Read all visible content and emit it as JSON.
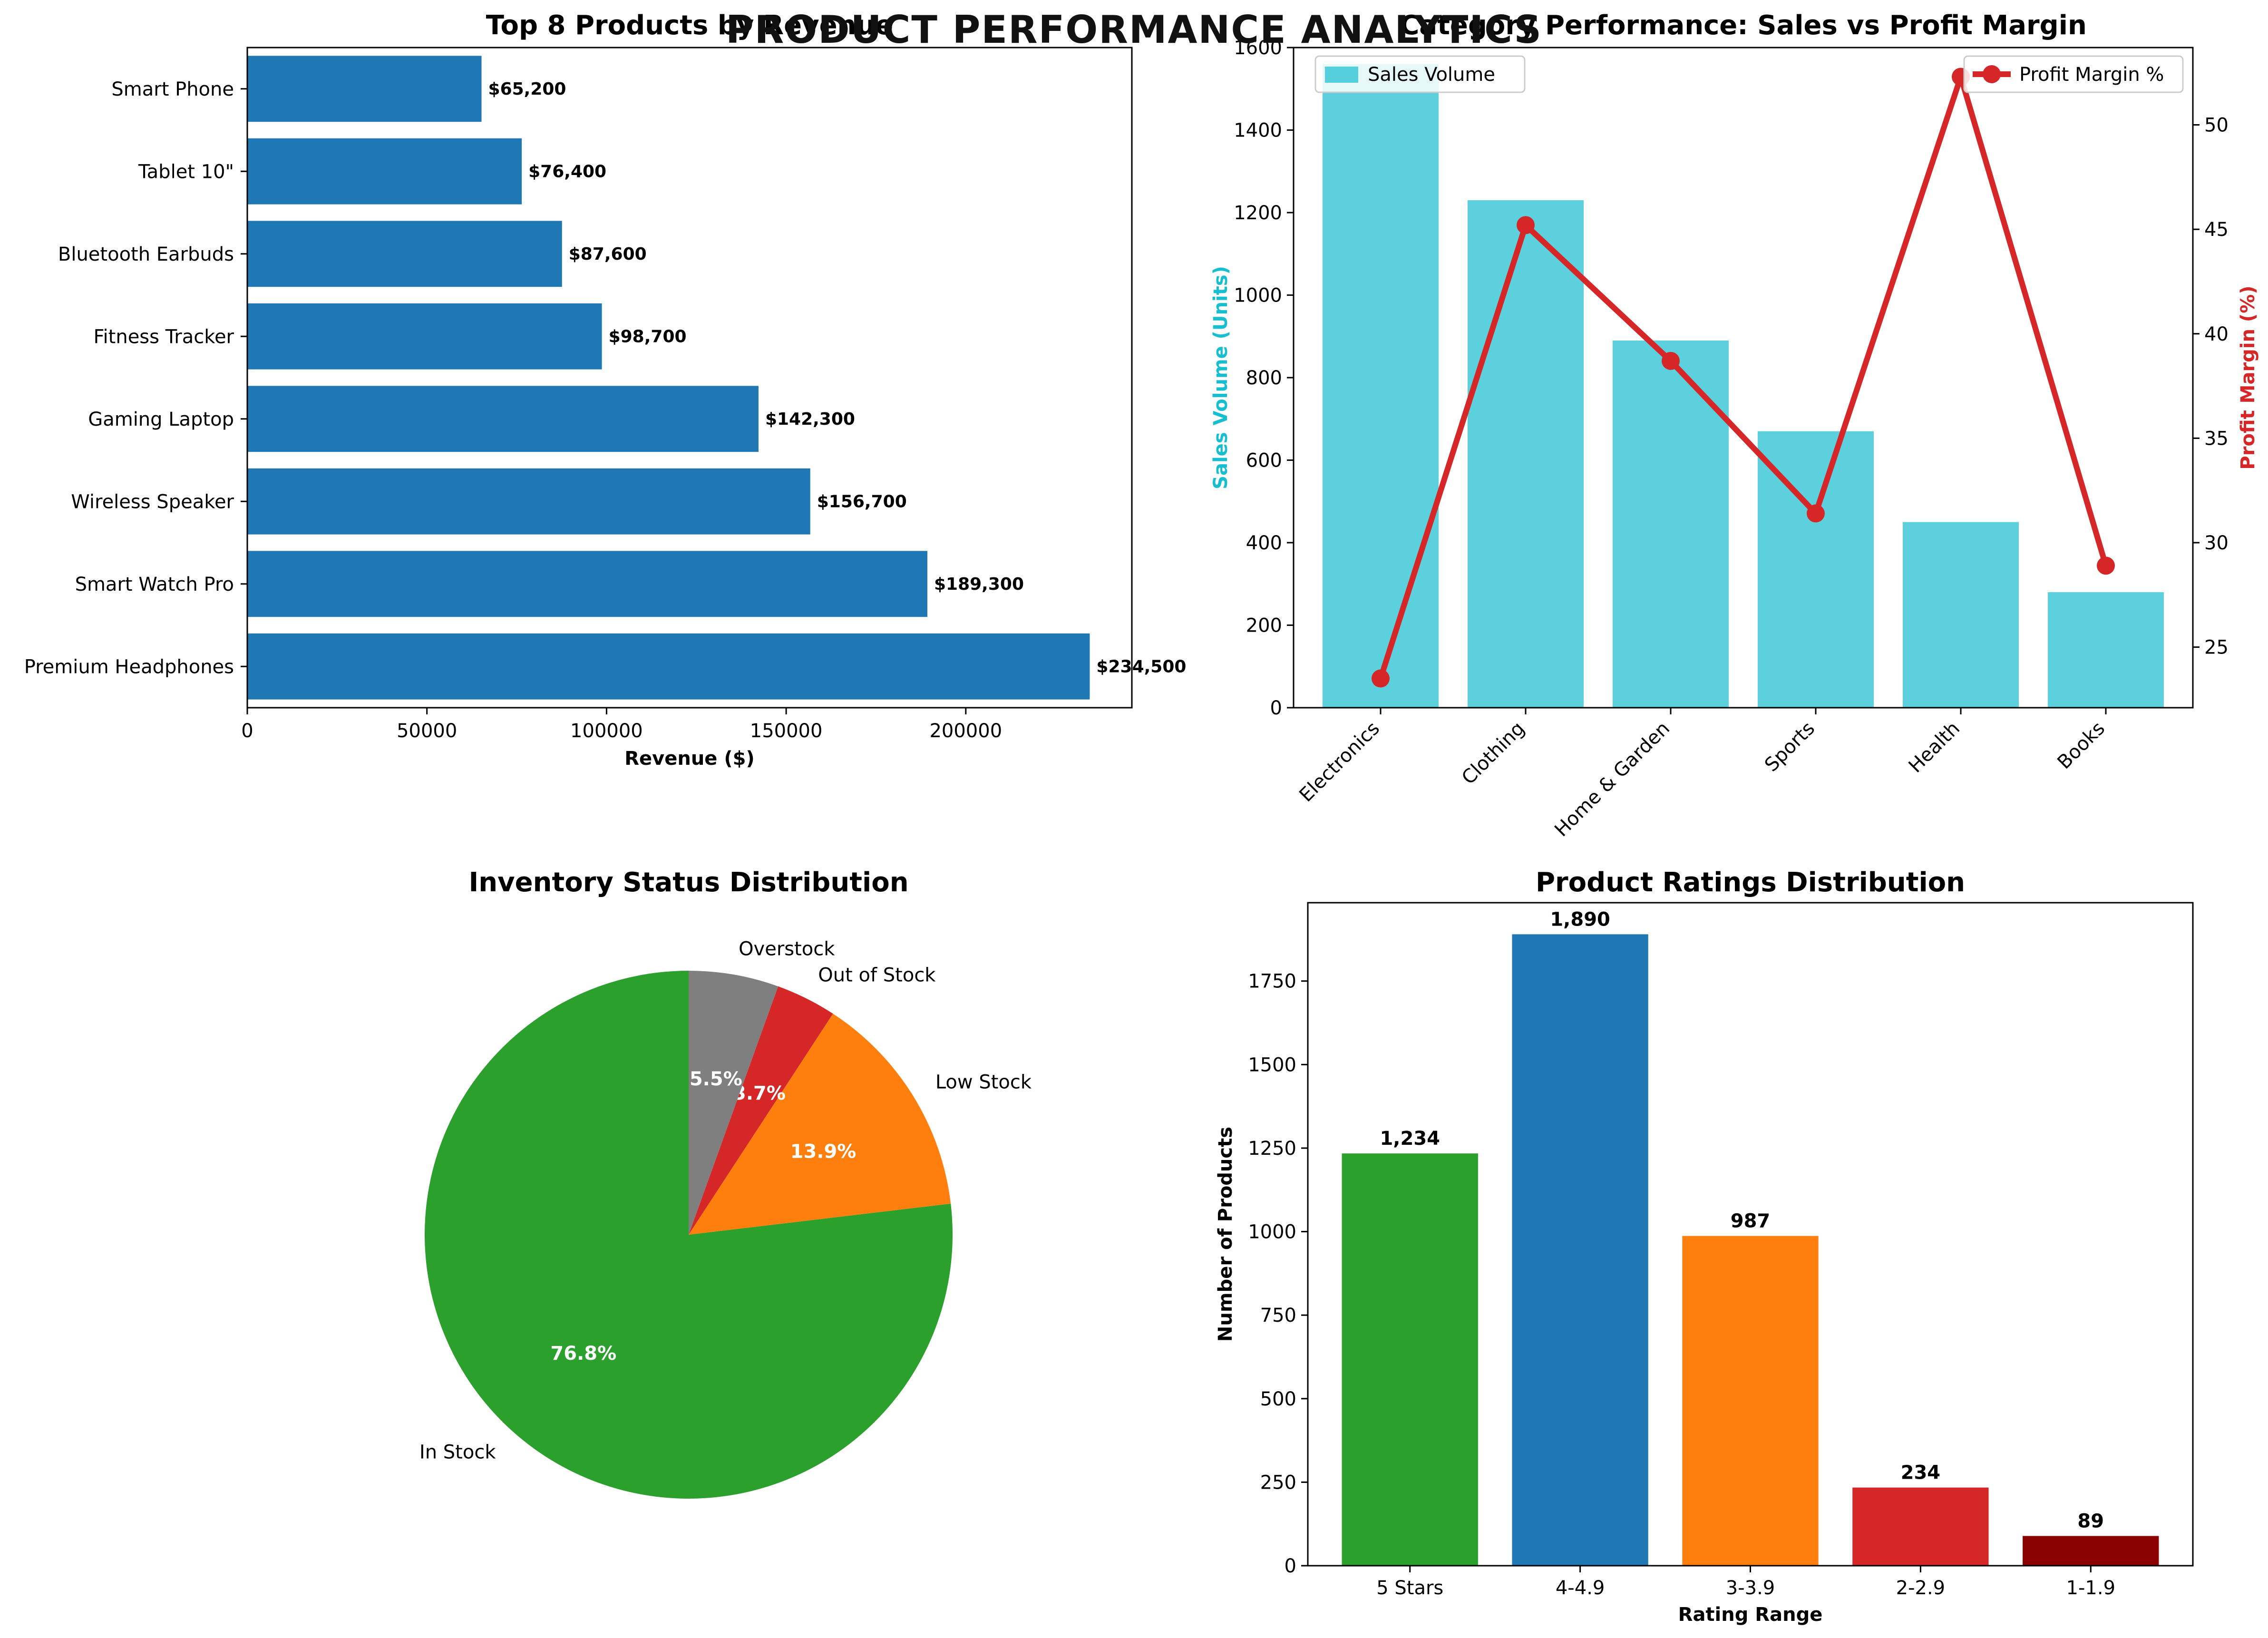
{
  "page_title": "PRODUCT PERFORMANCE ANALYTICS",
  "chart_data": [
    {
      "type": "bar",
      "orientation": "horizontal",
      "title": "Top 8 Products by Revenue",
      "xlabel": "Revenue ($)",
      "ylabel": "",
      "categories": [
        "Premium Headphones",
        "Smart Watch Pro",
        "Wireless Speaker",
        "Gaming Laptop",
        "Fitness Tracker",
        "Bluetooth Earbuds",
        "Tablet 10\"",
        "Smart Phone"
      ],
      "values": [
        234500,
        189300,
        156700,
        142300,
        98700,
        87600,
        76400,
        65200
      ],
      "value_labels": [
        "$234,500",
        "$189,300",
        "$156,700",
        "$142,300",
        "$98,700",
        "$87,600",
        "$76,400",
        "$65,200"
      ],
      "xticks": [
        0,
        50000,
        100000,
        150000,
        200000
      ],
      "xtick_labels": [
        "0",
        "50000",
        "100000",
        "150000",
        "200000"
      ],
      "xlim": [
        0,
        246225
      ],
      "color": "#1f77b4",
      "grid": false
    },
    {
      "type": "bar+line",
      "title": "Category Performance: Sales vs Profit Margin",
      "categories": [
        "Electronics",
        "Clothing",
        "Home & Garden",
        "Sports",
        "Health",
        "Books"
      ],
      "ylabel": "Sales Volume (Units)",
      "y2label": "Profit Margin (%)",
      "series": [
        {
          "name": "Sales Volume",
          "type": "bar",
          "axis": "left",
          "color": "#17becf",
          "values": [
            1560,
            1230,
            890,
            670,
            450,
            280
          ]
        },
        {
          "name": "Profit Margin %",
          "type": "line",
          "axis": "right",
          "color": "#d62728",
          "values": [
            23.5,
            45.2,
            38.7,
            31.4,
            52.3,
            28.9
          ]
        }
      ],
      "ylim": [
        0,
        1600
      ],
      "yticks": [
        0,
        200,
        400,
        600,
        800,
        1000,
        1200,
        1400,
        1600
      ],
      "y2lim": [
        22.1,
        53.7
      ],
      "y2ticks": [
        25,
        30,
        35,
        40,
        45,
        50
      ],
      "legend_left": "top-left",
      "legend_right": "top-right",
      "grid": false
    },
    {
      "type": "pie",
      "title": "Inventory Status Distribution",
      "labels": [
        "In Stock",
        "Low Stock",
        "Out of Stock",
        "Overstock"
      ],
      "values": [
        76.8,
        13.9,
        3.7,
        5.5
      ],
      "pct_labels": [
        "76.8%",
        "13.9%",
        "3.7%",
        "5.5%"
      ],
      "colors": [
        "#2ca02c",
        "#ff7f0e",
        "#d62728",
        "#7f7f7f"
      ],
      "start_angle": 90,
      "direction": "counterclockwise"
    },
    {
      "type": "bar",
      "title": "Product Ratings Distribution",
      "xlabel": "Rating Range",
      "ylabel": "Number of Products",
      "categories": [
        "5 Stars",
        "4-4.9",
        "3-3.9",
        "2-2.9",
        "1-1.9"
      ],
      "values": [
        1234,
        1890,
        987,
        234,
        89
      ],
      "value_labels": [
        "1,234",
        "1,890",
        "987",
        "234",
        "89"
      ],
      "colors": [
        "#2ca02c",
        "#1f77b4",
        "#ff7f0e",
        "#d62728",
        "#8b0000"
      ],
      "ylim": [
        0,
        1984.5
      ],
      "yticks": [
        0,
        250,
        500,
        750,
        1000,
        1250,
        1500,
        1750
      ],
      "grid": false
    }
  ]
}
